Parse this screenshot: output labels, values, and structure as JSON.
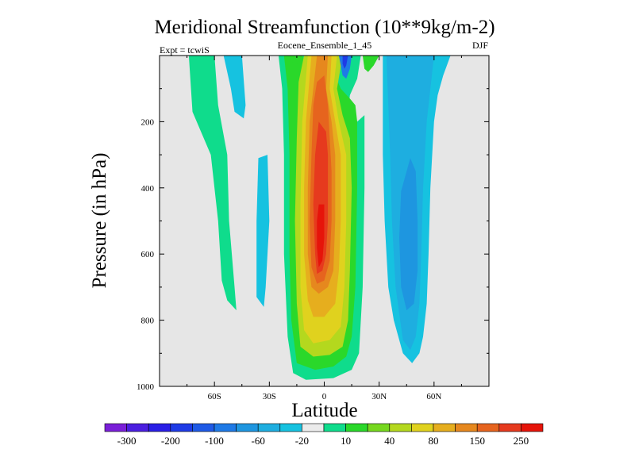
{
  "chart_data": {
    "type": "contour",
    "title": "Meridional Streamfunction (10**9kg/m-2)",
    "subtitle_left": "Expt = tcwiS",
    "subtitle_center": "Eocene_Ensemble_1_45",
    "subtitle_right": "DJF",
    "xlabel": "Latitude",
    "ylabel": "Pressure (in hPa)",
    "xlim": [
      -90,
      90
    ],
    "ylim": [
      0,
      1000
    ],
    "y_reversed": true,
    "x_ticks": [
      {
        "value": -60,
        "label": "60S"
      },
      {
        "value": -30,
        "label": "30S"
      },
      {
        "value": 0,
        "label": "0"
      },
      {
        "value": 30,
        "label": "30N"
      },
      {
        "value": 60,
        "label": "60N"
      }
    ],
    "y_ticks": [
      {
        "value": 200,
        "label": "200"
      },
      {
        "value": 400,
        "label": "400"
      },
      {
        "value": 600,
        "label": "600"
      },
      {
        "value": 800,
        "label": "800"
      },
      {
        "value": 1000,
        "label": "1000"
      }
    ],
    "background_color": "#e6e6e6",
    "colorbar": {
      "colors": [
        "#7a1fd8",
        "#4b1ee0",
        "#2a1ee6",
        "#1e3be6",
        "#1e5ae6",
        "#1e7ae6",
        "#1e96e0",
        "#1eaee0",
        "#16c2e0",
        "#ebebeb",
        "#0fdc8c",
        "#2ad82a",
        "#76d81e",
        "#b4d81e",
        "#e0d21e",
        "#e6ae1e",
        "#e6881e",
        "#e6641e",
        "#e63a1e",
        "#e6140a"
      ],
      "labels": [
        {
          "after": 0,
          "text": "-300"
        },
        {
          "after": 2,
          "text": "-200"
        },
        {
          "after": 4,
          "text": "-100"
        },
        {
          "after": 6,
          "text": "-60"
        },
        {
          "after": 8,
          "text": "-20"
        },
        {
          "after": 10,
          "text": "10"
        },
        {
          "after": 12,
          "text": "40"
        },
        {
          "after": 14,
          "text": "80"
        },
        {
          "after": 16,
          "text": "150"
        },
        {
          "after": 18,
          "text": "250"
        }
      ]
    },
    "contours": [
      {
        "name": "region-sh-outer-green",
        "color": "#0fdc8c",
        "points": [
          [
            -74,
            0
          ],
          [
            -60,
            0
          ],
          [
            -58,
            150
          ],
          [
            -53,
            300
          ],
          [
            -52,
            500
          ],
          [
            -49,
            700
          ],
          [
            -48,
            770
          ],
          [
            -53,
            740
          ],
          [
            -56,
            680
          ],
          [
            -58,
            500
          ],
          [
            -62,
            300
          ],
          [
            -72,
            170
          ]
        ]
      },
      {
        "name": "region-sh-small-blue",
        "color": "#16c2e0",
        "points": [
          [
            -55,
            0
          ],
          [
            -45,
            0
          ],
          [
            -43,
            150
          ],
          [
            -44,
            190
          ],
          [
            -49,
            170
          ],
          [
            -51,
            100
          ]
        ]
      },
      {
        "name": "region-sh-mid-blue",
        "color": "#16c2e0",
        "points": [
          [
            -36,
            310
          ],
          [
            -31,
            300
          ],
          [
            -30,
            500
          ],
          [
            -32,
            700
          ],
          [
            -33,
            760
          ],
          [
            -37,
            730
          ],
          [
            -37,
            500
          ]
        ]
      },
      {
        "name": "region-main-10",
        "color": "#0fdc8c",
        "points": [
          [
            -25,
            0
          ],
          [
            20,
            0
          ],
          [
            18,
            70
          ],
          [
            14,
            120
          ],
          [
            13,
            180
          ],
          [
            18,
            200
          ],
          [
            22,
            180
          ],
          [
            22,
            400
          ],
          [
            21,
            700
          ],
          [
            19,
            900
          ],
          [
            15,
            950
          ],
          [
            5,
            975
          ],
          [
            -10,
            980
          ],
          [
            -17,
            960
          ],
          [
            -20,
            850
          ],
          [
            -22,
            600
          ],
          [
            -22,
            300
          ],
          [
            -23,
            100
          ]
        ]
      },
      {
        "name": "region-main-40",
        "color": "#2ad82a",
        "points": [
          [
            -22,
            0
          ],
          [
            -12,
            0
          ],
          [
            -8,
            50
          ],
          [
            0,
            0
          ],
          [
            5,
            0
          ],
          [
            6,
            60
          ],
          [
            9,
            100
          ],
          [
            14,
            130
          ],
          [
            17,
            150
          ],
          [
            18,
            200
          ],
          [
            18,
            400
          ],
          [
            17,
            700
          ],
          [
            15,
            850
          ],
          [
            12,
            910
          ],
          [
            5,
            940
          ],
          [
            -5,
            950
          ],
          [
            -15,
            930
          ],
          [
            -18,
            800
          ],
          [
            -19,
            600
          ],
          [
            -19,
            300
          ],
          [
            -20,
            100
          ]
        ]
      },
      {
        "name": "region-main-80",
        "color": "#b4d81e",
        "points": [
          [
            -11,
            0
          ],
          [
            10,
            0
          ],
          [
            7,
            100
          ],
          [
            10,
            180
          ],
          [
            14,
            250
          ],
          [
            15,
            400
          ],
          [
            14,
            650
          ],
          [
            13,
            800
          ],
          [
            10,
            880
          ],
          [
            3,
            905
          ],
          [
            -6,
            910
          ],
          [
            -13,
            880
          ],
          [
            -15,
            750
          ],
          [
            -16,
            500
          ],
          [
            -15,
            250
          ],
          [
            -14,
            80
          ]
        ]
      },
      {
        "name": "region-main-120",
        "color": "#e0d21e",
        "points": [
          [
            -9,
            0
          ],
          [
            7,
            0
          ],
          [
            5,
            100
          ],
          [
            8,
            200
          ],
          [
            12,
            300
          ],
          [
            12,
            500
          ],
          [
            11,
            700
          ],
          [
            9,
            820
          ],
          [
            3,
            860
          ],
          [
            -6,
            870
          ],
          [
            -11,
            830
          ],
          [
            -13,
            700
          ],
          [
            -13,
            450
          ],
          [
            -12,
            200
          ]
        ]
      },
      {
        "name": "region-main-150",
        "color": "#e6ae1e",
        "points": [
          [
            -7,
            0
          ],
          [
            4,
            0
          ],
          [
            3,
            100
          ],
          [
            6,
            200
          ],
          [
            9,
            300
          ],
          [
            9,
            500
          ],
          [
            8,
            650
          ],
          [
            6,
            750
          ],
          [
            0,
            790
          ],
          [
            -6,
            790
          ],
          [
            -9,
            740
          ],
          [
            -11,
            600
          ],
          [
            -11,
            400
          ],
          [
            -10,
            200
          ]
        ]
      },
      {
        "name": "region-main-200",
        "color": "#e6881e",
        "points": [
          [
            -4,
            0
          ],
          [
            2,
            0
          ],
          [
            1,
            100
          ],
          [
            4,
            200
          ],
          [
            6,
            300
          ],
          [
            6,
            500
          ],
          [
            5,
            650
          ],
          [
            2,
            700
          ],
          [
            -3,
            720
          ],
          [
            -7,
            700
          ],
          [
            -9,
            600
          ],
          [
            -9,
            400
          ],
          [
            -8,
            200
          ]
        ]
      },
      {
        "name": "region-main-250",
        "color": "#e6641e",
        "points": [
          [
            -4,
            80
          ],
          [
            0,
            60
          ],
          [
            2,
            150
          ],
          [
            3,
            250
          ],
          [
            4,
            350
          ],
          [
            4,
            500
          ],
          [
            3,
            620
          ],
          [
            0,
            680
          ],
          [
            -4,
            690
          ],
          [
            -7,
            640
          ],
          [
            -8,
            500
          ],
          [
            -7,
            300
          ],
          [
            -6,
            150
          ]
        ]
      },
      {
        "name": "region-main-300",
        "color": "#e63a1e",
        "points": [
          [
            -3,
            200
          ],
          [
            1,
            230
          ],
          [
            2,
            300
          ],
          [
            2,
            500
          ],
          [
            1,
            600
          ],
          [
            -1,
            650
          ],
          [
            -4,
            660
          ],
          [
            -5,
            600
          ],
          [
            -6,
            450
          ],
          [
            -5,
            300
          ]
        ]
      },
      {
        "name": "region-main-350",
        "color": "#e6140a",
        "points": [
          [
            -3,
            450
          ],
          [
            0,
            450
          ],
          [
            0,
            550
          ],
          [
            -1,
            620
          ],
          [
            -3,
            640
          ],
          [
            -4,
            580
          ],
          [
            -4,
            500
          ]
        ]
      },
      {
        "name": "region-nh-upper-green",
        "color": "#2ad82a",
        "points": [
          [
            21,
            0
          ],
          [
            30,
            0
          ],
          [
            27,
            30
          ],
          [
            24,
            50
          ],
          [
            22,
            40
          ]
        ]
      },
      {
        "name": "region-nh-upper-blue",
        "color": "#1e7ae6",
        "points": [
          [
            8,
            0
          ],
          [
            15,
            0
          ],
          [
            14,
            40
          ],
          [
            12,
            70
          ],
          [
            10,
            60
          ],
          [
            9,
            30
          ]
        ]
      },
      {
        "name": "region-nh-upper-darkblue",
        "color": "#1e3be6",
        "points": [
          [
            10,
            0
          ],
          [
            13,
            0
          ],
          [
            12,
            30
          ],
          [
            11,
            40
          ],
          [
            10,
            25
          ]
        ]
      },
      {
        "name": "region-nh-sh-upper-green",
        "color": "#2ad82a",
        "points": [
          [
            -18,
            0
          ],
          [
            -14,
            0
          ],
          [
            -15,
            30
          ],
          [
            -17,
            30
          ]
        ]
      },
      {
        "name": "region-nh-blue-wide",
        "color": "#16c2e0",
        "points": [
          [
            32,
            0
          ],
          [
            69,
            0
          ],
          [
            65,
            60
          ],
          [
            62,
            120
          ],
          [
            60,
            200
          ],
          [
            58,
            400
          ],
          [
            57,
            600
          ],
          [
            56,
            750
          ],
          [
            54,
            850
          ],
          [
            52,
            900
          ],
          [
            48,
            930
          ],
          [
            43,
            900
          ],
          [
            38,
            800
          ],
          [
            35,
            700
          ],
          [
            33,
            500
          ],
          [
            32,
            300
          ],
          [
            32,
            150
          ]
        ]
      },
      {
        "name": "region-nh-blue-inner",
        "color": "#1eaee0",
        "points": [
          [
            34,
            0
          ],
          [
            60,
            0
          ],
          [
            58,
            100
          ],
          [
            56,
            200
          ],
          [
            54,
            400
          ],
          [
            53,
            600
          ],
          [
            52,
            750
          ],
          [
            50,
            850
          ],
          [
            47,
            890
          ],
          [
            43,
            860
          ],
          [
            39,
            700
          ],
          [
            37,
            500
          ],
          [
            36,
            300
          ],
          [
            35,
            150
          ]
        ]
      },
      {
        "name": "region-nh-blue-core",
        "color": "#1e96e0",
        "points": [
          [
            42,
            410
          ],
          [
            47,
            310
          ],
          [
            50,
            350
          ],
          [
            51,
            500
          ],
          [
            51,
            650
          ],
          [
            49,
            750
          ],
          [
            45,
            770
          ],
          [
            42,
            700
          ],
          [
            41,
            550
          ]
        ]
      }
    ]
  }
}
